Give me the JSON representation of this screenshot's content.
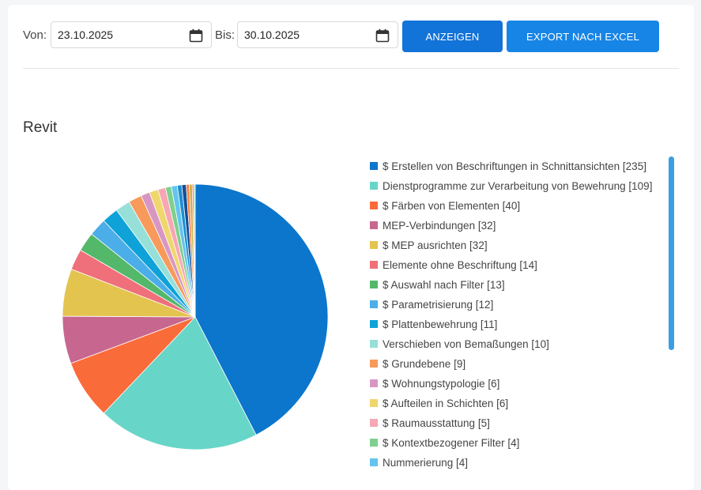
{
  "filters": {
    "from_label": "Von:",
    "from_value": "23.10.2025",
    "to_label": "Bis:",
    "to_value": "30.10.2025",
    "show_button": "ANZEIGEN",
    "export_button": "EXPORT NACH EXCEL"
  },
  "section": {
    "title": "Revit"
  },
  "chart_data": {
    "type": "pie",
    "title": "Revit",
    "legend_position": "right",
    "slices": [
      {
        "label": "$ Erstellen von Beschriftungen in Schnittansichten [235]",
        "value": 235,
        "color": "#0b76cb"
      },
      {
        "label": "Dienstprogramme zur Verarbeitung von Bewehrung [109]",
        "value": 109,
        "color": "#67d6c8"
      },
      {
        "label": "$ Färben von Elementen [40]",
        "value": 40,
        "color": "#fa6b3a"
      },
      {
        "label": "MEP-Verbindungen [32]",
        "value": 32,
        "color": "#c7678f"
      },
      {
        "label": "$ MEP ausrichten [32]",
        "value": 32,
        "color": "#e3c44f"
      },
      {
        "label": "Elemente ohne Beschriftung [14]",
        "value": 14,
        "color": "#ef6f7a"
      },
      {
        "label": "$ Auswahl nach Filter [13]",
        "value": 13,
        "color": "#54b86b"
      },
      {
        "label": "$ Parametrisierung [12]",
        "value": 12,
        "color": "#4baee8"
      },
      {
        "label": "$ Plattenbewehrung [11]",
        "value": 11,
        "color": "#0ea2d8"
      },
      {
        "label": "Verschieben von Bemaßungen [10]",
        "value": 10,
        "color": "#96e0d9"
      },
      {
        "label": "$ Grundebene [9]",
        "value": 9,
        "color": "#f79a5b"
      },
      {
        "label": "$ Wohnungstypologie [6]",
        "value": 6,
        "color": "#d897c3"
      },
      {
        "label": "$ Aufteilen in Schichten [6]",
        "value": 6,
        "color": "#efd76e"
      },
      {
        "label": "$ Raumausstattung [5]",
        "value": 5,
        "color": "#f6a7b4"
      },
      {
        "label": "$ Kontextbezogener Filter [4]",
        "value": 4,
        "color": "#7fcf8e"
      },
      {
        "label": "Nummerierung [4]",
        "value": 4,
        "color": "#64c4ee"
      }
    ],
    "unlisted_slices": [
      {
        "value": 3,
        "color": "#1b8fd3"
      },
      {
        "value": 3,
        "color": "#14509a"
      },
      {
        "value": 2,
        "color": "#ff7f3a"
      },
      {
        "value": 2,
        "color": "#c8b04a"
      },
      {
        "value": 1,
        "color": "#e0694a"
      },
      {
        "value": 1,
        "color": "#9fd6c6"
      }
    ]
  }
}
